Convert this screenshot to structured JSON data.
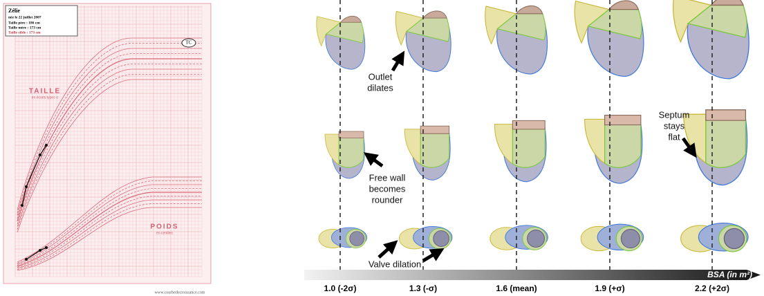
{
  "growth_chart": {
    "name": "Zélie",
    "birth": "née le 22 juillet 2007",
    "father": "Taille père : 186 cm",
    "mother": "Taille mère : 173 cm",
    "target": "Taille cible : 173 cm",
    "target_marker": "TC",
    "height_title": "TAILLE",
    "height_subtitle": "en écarts types σ",
    "weight_title": "POIDS",
    "weight_subtitle": "en centiles",
    "website": "www.courbedecroissance.com"
  },
  "figure": {
    "annotations": {
      "outlet": [
        "Outlet",
        "dilates"
      ],
      "free_wall": [
        "Free wall",
        "becomes",
        "rounder"
      ],
      "septum": [
        "Septum",
        "stays",
        "flat"
      ],
      "valve": [
        "Valve dilation"
      ]
    },
    "axis_title": "BSA (in m²)",
    "columns": [
      "1.0 (-2σ)",
      "1.3 (-σ)",
      "1.6 (mean)",
      "1.9 (+σ)",
      "2.2 (+2σ)"
    ]
  }
}
